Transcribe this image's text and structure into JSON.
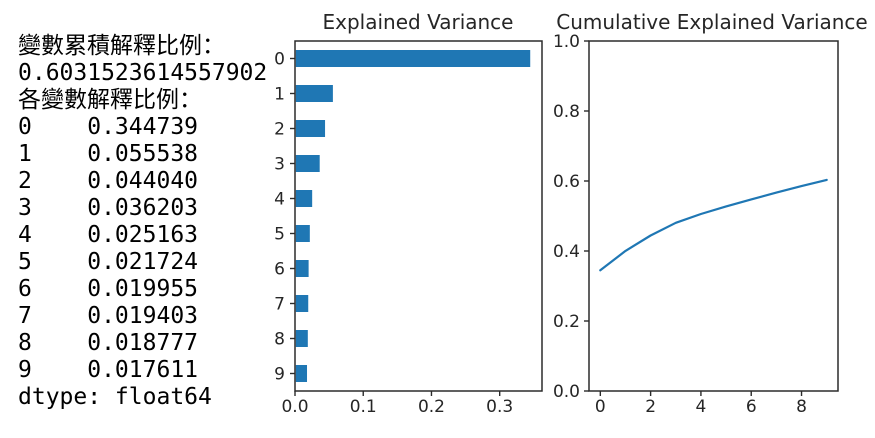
{
  "figure": {
    "background": "#ffffff"
  },
  "console": {
    "lines": [
      "變數累積解釋比例：",
      "0.6031523614557902",
      "各變數解釋比例：",
      "0    0.344739",
      "1    0.055538",
      "2    0.044040",
      "3    0.036203",
      "4    0.025163",
      "5    0.021724",
      "6    0.019955",
      "7    0.019403",
      "8    0.018777",
      "9    0.017611",
      "dtype: float64"
    ]
  },
  "style": {
    "accent_blue": "#1f77b4",
    "axis_color": "#2b2b2b",
    "tick_color": "#262626",
    "text_color": "#000000"
  },
  "chart_data": [
    {
      "type": "bar",
      "orientation": "horizontal",
      "title": "Explained Variance",
      "categories": [
        "0",
        "1",
        "2",
        "3",
        "4",
        "5",
        "6",
        "7",
        "8",
        "9"
      ],
      "values": [
        0.344739,
        0.055538,
        0.04404,
        0.036203,
        0.025163,
        0.021724,
        0.019955,
        0.019403,
        0.018777,
        0.017611
      ],
      "xticks": [
        0.0,
        0.1,
        0.2,
        0.3
      ],
      "xtick_labels": [
        "0.0",
        "0.1",
        "0.2",
        "0.3"
      ],
      "xlim": [
        0,
        0.362
      ],
      "grid": false,
      "legend": false,
      "bar_color": "#1f77b4"
    },
    {
      "type": "line",
      "title": "Cumulative Explained Variance",
      "x": [
        0,
        1,
        2,
        3,
        4,
        5,
        6,
        7,
        8,
        9
      ],
      "y": [
        0.344739,
        0.400277,
        0.444317,
        0.48052,
        0.505683,
        0.527407,
        0.547362,
        0.566765,
        0.585542,
        0.603153
      ],
      "xticks": [
        0,
        2,
        4,
        6,
        8
      ],
      "xtick_labels": [
        "0",
        "2",
        "4",
        "6",
        "8"
      ],
      "yticks": [
        0.0,
        0.2,
        0.4,
        0.6,
        0.8,
        1.0
      ],
      "ytick_labels": [
        "0.0",
        "0.2",
        "0.4",
        "0.6",
        "0.8",
        "1.0"
      ],
      "xlim": [
        -0.45,
        9.45
      ],
      "ylim": [
        0.0,
        1.0
      ],
      "grid": false,
      "legend": false,
      "line_color": "#1f77b4"
    }
  ]
}
